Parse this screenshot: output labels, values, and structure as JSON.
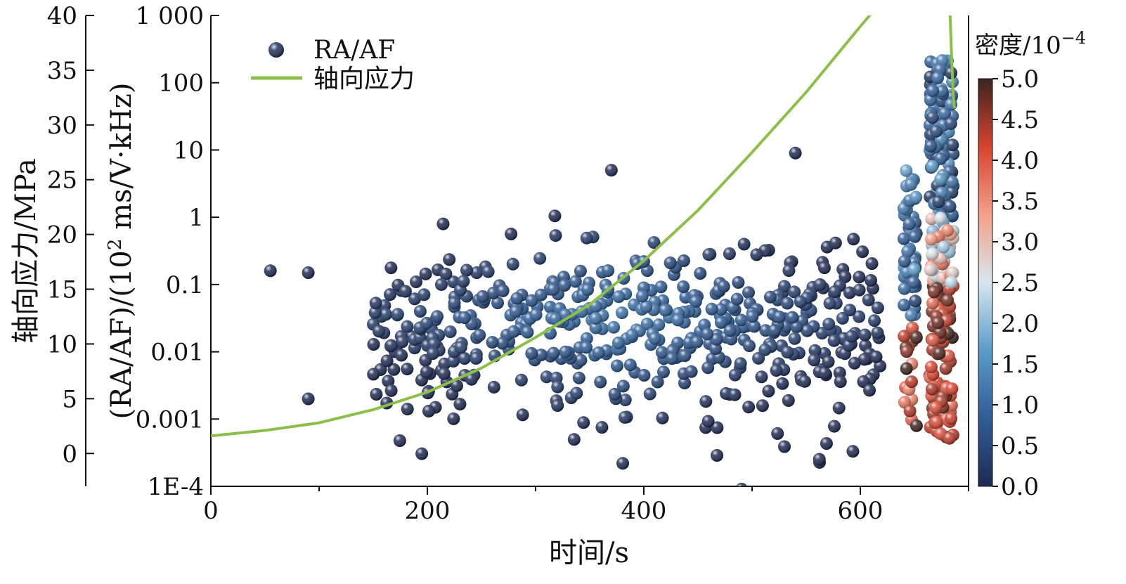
{
  "chart_data": {
    "type": "scatter",
    "x_axis": {
      "label": "时间/s",
      "range": [
        0,
        700
      ],
      "ticks": [
        0,
        200,
        400,
        600
      ],
      "tick_labels": [
        "0",
        "200",
        "400",
        "600"
      ]
    },
    "y_axis_left": {
      "label": "轴向应力/MPa",
      "range": [
        -3,
        40
      ],
      "ticks": [
        0,
        5,
        10,
        15,
        20,
        25,
        30,
        35,
        40
      ],
      "tick_labels": [
        "0",
        "5",
        "10",
        "15",
        "20",
        "25",
        "30",
        "35",
        "40"
      ]
    },
    "y_axis_mid": {
      "label_main": "(RA/AF)/(10",
      "label_sup": "2",
      "label_rest": " ms/V·kHz)",
      "scale": "log",
      "range": [
        0.0001,
        1000
      ],
      "ticks": [
        0.0001,
        0.001,
        0.01,
        0.1,
        1,
        10,
        100,
        1000
      ],
      "tick_labels": [
        "1E-4",
        "0.001",
        "0.01",
        "0.1",
        "1",
        "10",
        "100",
        "1 000"
      ]
    },
    "colorbar": {
      "title_main": "密度/10",
      "title_sup": "−4",
      "range": [
        0,
        5
      ],
      "ticks": [
        "0.0",
        "0.5",
        "1.0",
        "1.5",
        "2.0",
        "2.5",
        "3.0",
        "3.5",
        "4.0",
        "4.5",
        "5.0"
      ],
      "colors": [
        "#1f2a52",
        "#2f5d96",
        "#5a9cc8",
        "#d8e6ef",
        "#f3a088",
        "#d8432e",
        "#3a2420"
      ]
    },
    "legend": {
      "position": "top-left",
      "entries": [
        {
          "label": "RA/AF",
          "marker": "sphere",
          "color": "#24335e"
        },
        {
          "label": "轴向应力",
          "marker": "line",
          "color": "#8bbf4a"
        }
      ]
    },
    "stress_series": {
      "color": "#8bbf4a",
      "points": [
        [
          0,
          1.6
        ],
        [
          50,
          2.1
        ],
        [
          100,
          2.8
        ],
        [
          150,
          4.0
        ],
        [
          200,
          5.6
        ],
        [
          250,
          7.8
        ],
        [
          300,
          10.6
        ],
        [
          350,
          13.6
        ],
        [
          400,
          17.6
        ],
        [
          450,
          22.2
        ],
        [
          500,
          27.5
        ],
        [
          550,
          33.0
        ],
        [
          600,
          39.0
        ],
        [
          630,
          42.5
        ],
        [
          650,
          45.6
        ],
        [
          655,
          43.0
        ],
        [
          660,
          42.8
        ],
        [
          670,
          43.5
        ],
        [
          678,
          44.5
        ],
        [
          682,
          43.0
        ],
        [
          684,
          37.0
        ],
        [
          686,
          32.5
        ],
        [
          687,
          31.5
        ]
      ]
    },
    "ra_af_scatter_density_colored": true,
    "notable_points": [
      [
        55,
        0.16
      ],
      [
        90,
        0.15
      ],
      [
        90,
        0.002
      ],
      [
        370,
        5
      ],
      [
        540,
        9
      ]
    ]
  }
}
